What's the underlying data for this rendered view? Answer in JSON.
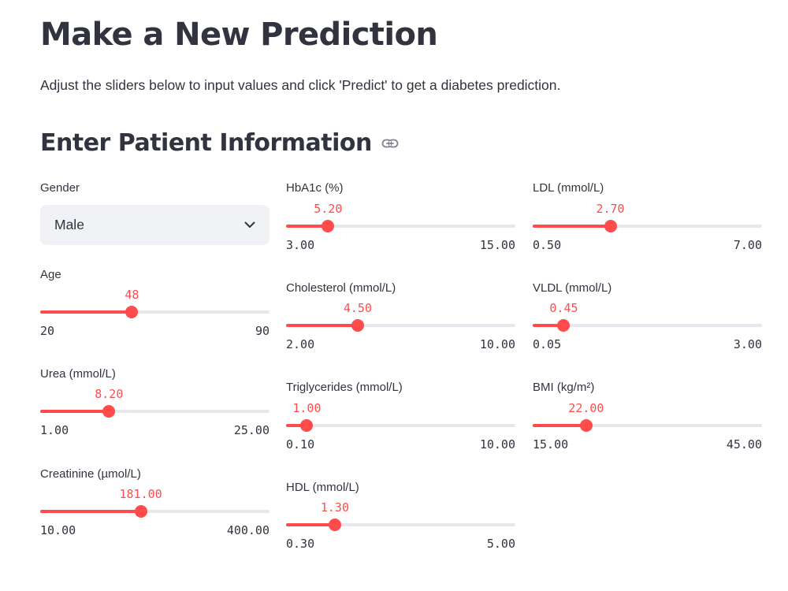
{
  "page": {
    "title": "Make a New Prediction",
    "description": "Adjust the sliders below to input values and click 'Predict' to get a diabetes prediction."
  },
  "section": {
    "title": "Enter Patient Information",
    "link_icon": "link-icon"
  },
  "gender": {
    "label": "Gender",
    "selected": "Male",
    "icon": "chevron-down-icon"
  },
  "accent_color": "#ff4b4b",
  "sliders": {
    "age": {
      "label": "Age",
      "value": "48",
      "min": "20",
      "max": "90",
      "fraction": 0.4
    },
    "urea": {
      "label": "Urea (mmol/L)",
      "value": "8.20",
      "min": "1.00",
      "max": "25.00",
      "fraction": 0.3
    },
    "creatinine": {
      "label": "Creatinine (µmol/L)",
      "value": "181.00",
      "min": "10.00",
      "max": "400.00",
      "fraction": 0.4385
    },
    "hba1c": {
      "label": "HbA1c (%)",
      "value": "5.20",
      "min": "3.00",
      "max": "15.00",
      "fraction": 0.1833
    },
    "cholesterol": {
      "label": "Cholesterol (mmol/L)",
      "value": "4.50",
      "min": "2.00",
      "max": "10.00",
      "fraction": 0.3125
    },
    "triglycerides": {
      "label": "Triglycerides (mmol/L)",
      "value": "1.00",
      "min": "0.10",
      "max": "10.00",
      "fraction": 0.0909
    },
    "hdl": {
      "label": "HDL (mmol/L)",
      "value": "1.30",
      "min": "0.30",
      "max": "5.00",
      "fraction": 0.2128
    },
    "ldl": {
      "label": "LDL (mmol/L)",
      "value": "2.70",
      "min": "0.50",
      "max": "7.00",
      "fraction": 0.3385
    },
    "vldl": {
      "label": "VLDL (mmol/L)",
      "value": "0.45",
      "min": "0.05",
      "max": "3.00",
      "fraction": 0.1356
    },
    "bmi": {
      "label": "BMI (kg/m²)",
      "value": "22.00",
      "min": "15.00",
      "max": "45.00",
      "fraction": 0.2333
    }
  }
}
